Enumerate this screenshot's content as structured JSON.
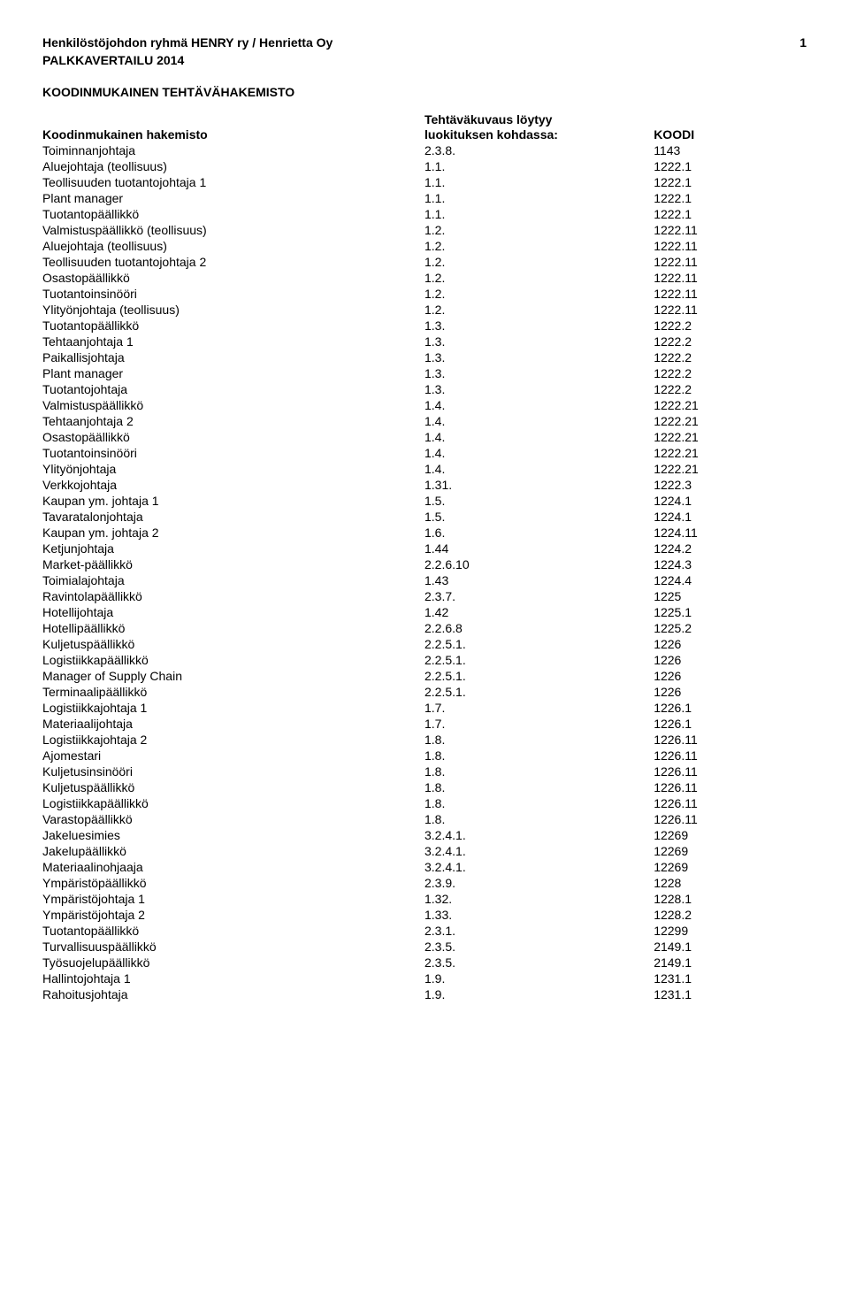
{
  "header": {
    "org": "Henkilöstöjohdon ryhmä HENRY ry / Henrietta Oy",
    "page_number": "1",
    "project": "PALKKAVERTAILU 2014",
    "section_title": "KOODINMUKAINEN TEHTÄVÄHAKEMISTO"
  },
  "table": {
    "header": {
      "upper": "Tehtäväkuvaus löytyy",
      "col1": "Koodinmukainen hakemisto",
      "col2": "luokituksen kohdassa:",
      "col3": "KOODI"
    },
    "rows": [
      {
        "name": "Toiminnanjohtaja",
        "luok": "2.3.8.",
        "koodi": "1143"
      },
      {
        "name": "Aluejohtaja (teollisuus)",
        "luok": "1.1.",
        "koodi": "1222.1"
      },
      {
        "name": "Teollisuuden tuotantojohtaja 1",
        "luok": "1.1.",
        "koodi": "1222.1"
      },
      {
        "name": "Plant manager",
        "luok": "1.1.",
        "koodi": "1222.1"
      },
      {
        "name": "Tuotantopäällikkö",
        "luok": "1.1.",
        "koodi": "1222.1"
      },
      {
        "name": "Valmistuspäällikkö (teollisuus)",
        "luok": "1.2.",
        "koodi": "1222.11"
      },
      {
        "name": "Aluejohtaja (teollisuus)",
        "luok": "1.2.",
        "koodi": "1222.11"
      },
      {
        "name": "Teollisuuden tuotantojohtaja 2",
        "luok": "1.2.",
        "koodi": "1222.11"
      },
      {
        "name": "Osastopäällikkö",
        "luok": "1.2.",
        "koodi": "1222.11"
      },
      {
        "name": "Tuotantoinsinööri",
        "luok": "1.2.",
        "koodi": "1222.11"
      },
      {
        "name": "Ylityönjohtaja (teollisuus)",
        "luok": "1.2.",
        "koodi": "1222.11"
      },
      {
        "name": "Tuotantopäällikkö",
        "luok": "1.3.",
        "koodi": "1222.2"
      },
      {
        "name": "Tehtaanjohtaja 1",
        "luok": "1.3.",
        "koodi": "1222.2"
      },
      {
        "name": "Paikallisjohtaja",
        "luok": "1.3.",
        "koodi": "1222.2"
      },
      {
        "name": "Plant manager",
        "luok": "1.3.",
        "koodi": "1222.2"
      },
      {
        "name": "Tuotantojohtaja",
        "luok": "1.3.",
        "koodi": "1222.2"
      },
      {
        "name": "Valmistuspäällikkö",
        "luok": "1.4.",
        "koodi": "1222.21"
      },
      {
        "name": "Tehtaanjohtaja 2",
        "luok": "1.4.",
        "koodi": "1222.21"
      },
      {
        "name": "Osastopäällikkö",
        "luok": "1.4.",
        "koodi": "1222.21"
      },
      {
        "name": "Tuotantoinsinööri",
        "luok": "1.4.",
        "koodi": "1222.21"
      },
      {
        "name": "Ylityönjohtaja",
        "luok": "1.4.",
        "koodi": "1222.21"
      },
      {
        "name": "Verkkojohtaja",
        "luok": "1.31.",
        "koodi": "1222.3"
      },
      {
        "name": "Kaupan ym. johtaja 1",
        "luok": "1.5.",
        "koodi": "1224.1"
      },
      {
        "name": "Tavaratalonjohtaja",
        "luok": "1.5.",
        "koodi": "1224.1"
      },
      {
        "name": "Kaupan ym. johtaja 2",
        "luok": "1.6.",
        "koodi": "1224.11"
      },
      {
        "name": "Ketjunjohtaja",
        "luok": "1.44",
        "koodi": "1224.2"
      },
      {
        "name": "Market-päällikkö",
        "luok": "2.2.6.10",
        "koodi": "1224.3"
      },
      {
        "name": "Toimialajohtaja",
        "luok": "1.43",
        "koodi": "1224.4"
      },
      {
        "name": "Ravintolapäällikkö",
        "luok": "2.3.7.",
        "koodi": "1225"
      },
      {
        "name": "Hotellijohtaja",
        "luok": "1.42",
        "koodi": "1225.1"
      },
      {
        "name": "Hotellipäällikkö",
        "luok": "2.2.6.8",
        "koodi": "1225.2"
      },
      {
        "name": "Kuljetuspäällikkö",
        "luok": "2.2.5.1.",
        "koodi": "1226"
      },
      {
        "name": "Logistiikkapäällikkö",
        "luok": "2.2.5.1.",
        "koodi": "1226"
      },
      {
        "name": "Manager of Supply Chain",
        "luok": "2.2.5.1.",
        "koodi": "1226"
      },
      {
        "name": "Terminaalipäällikkö",
        "luok": "2.2.5.1.",
        "koodi": "1226"
      },
      {
        "name": "Logistiikkajohtaja 1",
        "luok": "1.7.",
        "koodi": "1226.1"
      },
      {
        "name": "Materiaalijohtaja",
        "luok": "1.7.",
        "koodi": "1226.1"
      },
      {
        "name": "Logistiikkajohtaja 2",
        "luok": "1.8.",
        "koodi": "1226.11"
      },
      {
        "name": "Ajomestari",
        "luok": "1.8.",
        "koodi": "1226.11"
      },
      {
        "name": "Kuljetusinsinööri",
        "luok": "1.8.",
        "koodi": "1226.11"
      },
      {
        "name": "Kuljetuspäällikkö",
        "luok": "1.8.",
        "koodi": "1226.11"
      },
      {
        "name": "Logistiikkapäällikkö",
        "luok": "1.8.",
        "koodi": "1226.11"
      },
      {
        "name": "Varastopäällikkö",
        "luok": "1.8.",
        "koodi": "1226.11"
      },
      {
        "name": "Jakeluesimies",
        "luok": "3.2.4.1.",
        "koodi": "12269"
      },
      {
        "name": "Jakelupäällikkö",
        "luok": "3.2.4.1.",
        "koodi": "12269"
      },
      {
        "name": "Materiaalinohjaaja",
        "luok": "3.2.4.1.",
        "koodi": "12269"
      },
      {
        "name": "Ympäristöpäällikkö",
        "luok": "2.3.9.",
        "koodi": "1228"
      },
      {
        "name": "Ympäristöjohtaja 1",
        "luok": "1.32.",
        "koodi": "1228.1"
      },
      {
        "name": "Ympäristöjohtaja 2",
        "luok": "1.33.",
        "koodi": "1228.2"
      },
      {
        "name": "Tuotantopäällikkö",
        "luok": "2.3.1.",
        "koodi": "12299"
      },
      {
        "name": "Turvallisuuspäällikkö",
        "luok": "2.3.5.",
        "koodi": "2149.1"
      },
      {
        "name": "Työsuojelupäällikkö",
        "luok": "2.3.5.",
        "koodi": "2149.1"
      },
      {
        "name": "Hallintojohtaja 1",
        "luok": "1.9.",
        "koodi": "1231.1"
      },
      {
        "name": "Rahoitusjohtaja",
        "luok": "1.9.",
        "koodi": "1231.1"
      }
    ]
  }
}
